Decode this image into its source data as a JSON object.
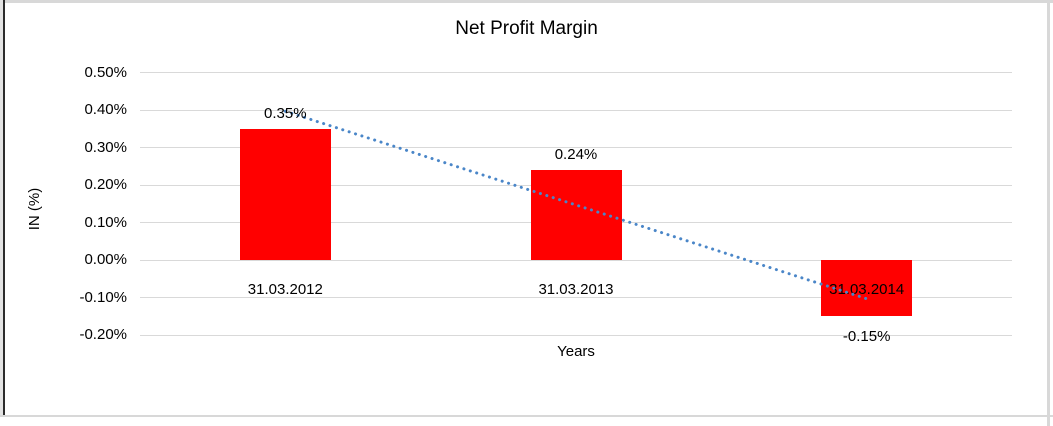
{
  "chart_data": {
    "type": "bar",
    "title": "Net Profit Margin",
    "xlabel": "Years",
    "ylabel": "IN (%)",
    "categories": [
      "31.03.2012",
      "31.03.2013",
      "31.03.2014"
    ],
    "values": [
      0.35,
      0.24,
      -0.15
    ],
    "data_labels": [
      "0.35%",
      "0.24%",
      "-0.15%"
    ],
    "ytick_values": [
      0.5,
      0.4,
      0.3,
      0.2,
      0.1,
      0.0,
      -0.1,
      -0.2
    ],
    "ytick_labels": [
      "0.50%",
      "0.40%",
      "0.30%",
      "0.20%",
      "0.10%",
      "0.00%",
      "-0.10%",
      "-0.20%"
    ],
    "ylim": [
      -0.2,
      0.5
    ],
    "unit": "%",
    "grid": true,
    "legend": "none",
    "colors": {
      "bar": "#ff0000",
      "gridline": "#d9d9d9",
      "trendline": "#4a86c8",
      "text": "#000000"
    },
    "trendline": {
      "type": "linear",
      "style": "dotted"
    }
  }
}
